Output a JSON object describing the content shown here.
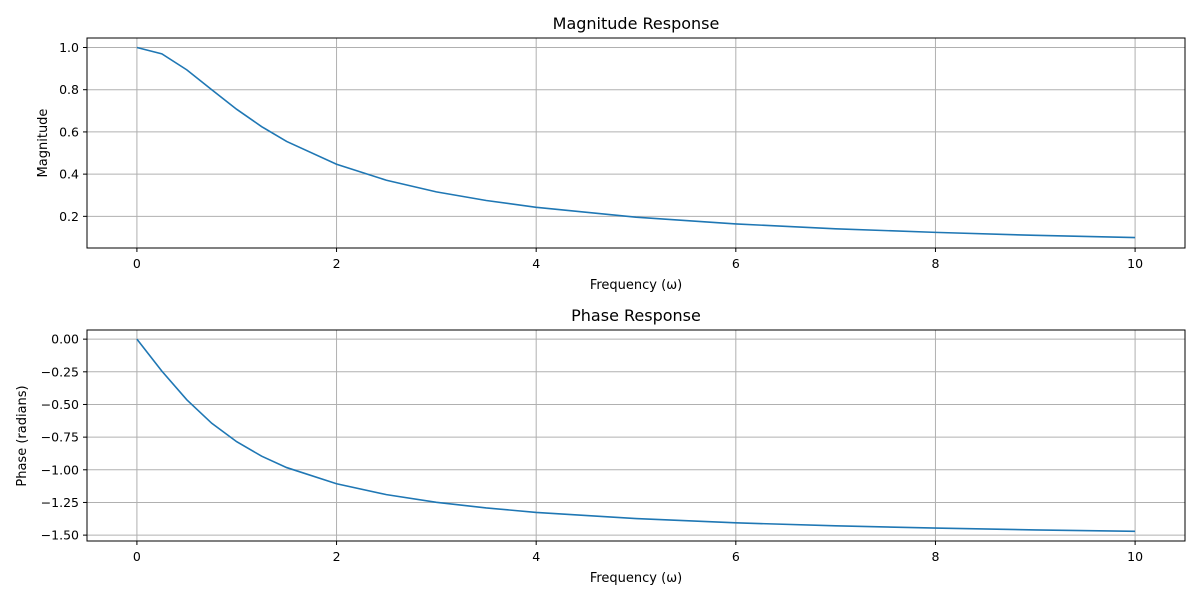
{
  "chart_data": [
    {
      "type": "line",
      "title": "Magnitude Response",
      "xlabel": "Frequency (ω)",
      "ylabel": "Magnitude",
      "xlim": [
        -0.5,
        10.5
      ],
      "ylim": [
        0.05,
        1.045
      ],
      "xticks": [
        0,
        2,
        4,
        6,
        8,
        10
      ],
      "xtick_labels": [
        "0",
        "2",
        "4",
        "6",
        "8",
        "10"
      ],
      "yticks": [
        0.2,
        0.4,
        0.6,
        0.8,
        1.0
      ],
      "ytick_labels": [
        "0.2",
        "0.4",
        "0.6",
        "0.8",
        "1.0"
      ],
      "grid": true,
      "series": [
        {
          "color": "#1f77b4",
          "x": [
            0,
            0.25,
            0.5,
            0.75,
            1,
            1.25,
            1.5,
            2,
            2.5,
            3,
            3.5,
            4,
            5,
            6,
            7,
            8,
            9,
            10
          ],
          "values": [
            1.0,
            0.97,
            0.894,
            0.8,
            0.707,
            0.625,
            0.555,
            0.447,
            0.371,
            0.316,
            0.275,
            0.243,
            0.196,
            0.164,
            0.141,
            0.124,
            0.11,
            0.0995
          ]
        }
      ]
    },
    {
      "type": "line",
      "title": "Phase Response",
      "xlabel": "Frequency (ω)",
      "ylabel": "Phase (radians)",
      "xlim": [
        -0.5,
        10.5
      ],
      "ylim": [
        -1.545,
        0.07
      ],
      "xticks": [
        0,
        2,
        4,
        6,
        8,
        10
      ],
      "xtick_labels": [
        "0",
        "2",
        "4",
        "6",
        "8",
        "10"
      ],
      "yticks": [
        0.0,
        -0.25,
        -0.5,
        -0.75,
        -1.0,
        -1.25,
        -1.5
      ],
      "ytick_labels": [
        "0.00",
        "−0.25",
        "−0.50",
        "−0.75",
        "−1.00",
        "−1.25",
        "−1.50"
      ],
      "grid": true,
      "series": [
        {
          "color": "#1f77b4",
          "x": [
            0,
            0.25,
            0.5,
            0.75,
            1,
            1.25,
            1.5,
            2,
            2.5,
            3,
            3.5,
            4,
            5,
            6,
            7,
            8,
            9,
            10
          ],
          "values": [
            0.0,
            -0.245,
            -0.464,
            -0.644,
            -0.785,
            -0.896,
            -0.983,
            -1.107,
            -1.19,
            -1.249,
            -1.292,
            -1.326,
            -1.373,
            -1.406,
            -1.429,
            -1.446,
            -1.46,
            -1.471
          ]
        }
      ]
    }
  ]
}
